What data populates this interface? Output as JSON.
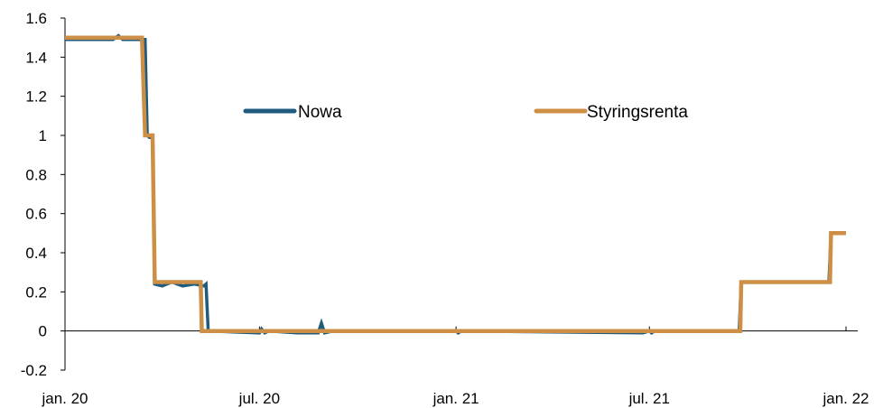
{
  "chart_data": {
    "type": "line",
    "xlabel": "",
    "ylabel": "",
    "ylim": [
      -0.2,
      1.6
    ],
    "yticks": [
      -0.2,
      0,
      0.2,
      0.4,
      0.6,
      0.8,
      1,
      1.2,
      1.4,
      1.6
    ],
    "ytick_labels": [
      "-0.2",
      "0",
      "0.2",
      "0.4",
      "0.6",
      "0.8",
      "1",
      "1.2",
      "1.4",
      "1.6"
    ],
    "xlim": [
      "2020-01-01",
      "2022-01-01"
    ],
    "xticks": [
      "2020-01-01",
      "2020-07-01",
      "2021-01-01",
      "2021-07-01",
      "2022-01-01"
    ],
    "xtick_labels": [
      "jan. 20",
      "jul. 20",
      "jan. 21",
      "jul. 21",
      "jan. 22"
    ],
    "grid": false,
    "legend_position": "upper-center",
    "series": [
      {
        "name": "Nowa",
        "color": "#1f5b7c",
        "points": [
          [
            "2020-01-01",
            1.49
          ],
          [
            "2020-02-15",
            1.49
          ],
          [
            "2020-02-20",
            1.51
          ],
          [
            "2020-02-24",
            1.49
          ],
          [
            "2020-03-16",
            1.49
          ],
          [
            "2020-03-18",
            1.0
          ],
          [
            "2020-03-20",
            0.99
          ],
          [
            "2020-03-23",
            0.99
          ],
          [
            "2020-03-25",
            0.24
          ],
          [
            "2020-04-01",
            0.23
          ],
          [
            "2020-04-10",
            0.25
          ],
          [
            "2020-04-20",
            0.23
          ],
          [
            "2020-05-01",
            0.24
          ],
          [
            "2020-05-10",
            0.23
          ],
          [
            "2020-05-12",
            0.24
          ],
          [
            "2020-05-14",
            0.0
          ],
          [
            "2020-07-01",
            -0.01
          ],
          [
            "2020-07-03",
            0.01
          ],
          [
            "2020-07-06",
            -0.01
          ],
          [
            "2020-07-10",
            0.0
          ],
          [
            "2020-08-05",
            -0.01
          ],
          [
            "2020-08-15",
            -0.01
          ],
          [
            "2020-08-25",
            -0.01
          ],
          [
            "2020-08-28",
            0.04
          ],
          [
            "2020-08-31",
            -0.01
          ],
          [
            "2020-09-08",
            0.0
          ],
          [
            "2021-01-01",
            0.0
          ],
          [
            "2021-01-03",
            -0.01
          ],
          [
            "2021-01-06",
            0.0
          ],
          [
            "2021-06-25",
            -0.01
          ],
          [
            "2021-07-01",
            0.0
          ],
          [
            "2021-07-03",
            -0.01
          ],
          [
            "2021-07-06",
            0.0
          ],
          [
            "2021-09-23",
            0.0
          ],
          [
            "2021-09-25",
            0.25
          ],
          [
            "2021-12-16",
            0.25
          ],
          [
            "2021-12-18",
            0.5
          ],
          [
            "2022-01-01",
            0.5
          ]
        ]
      },
      {
        "name": "Styringsrenta",
        "color": "#cc8f45",
        "points": [
          [
            "2020-01-01",
            1.5
          ],
          [
            "2020-03-13",
            1.5
          ],
          [
            "2020-03-16",
            1.0
          ],
          [
            "2020-03-23",
            1.0
          ],
          [
            "2020-03-25",
            0.25
          ],
          [
            "2020-05-07",
            0.25
          ],
          [
            "2020-05-08",
            0.0
          ],
          [
            "2021-09-24",
            0.0
          ],
          [
            "2021-09-25",
            0.25
          ],
          [
            "2021-12-17",
            0.25
          ],
          [
            "2021-12-18",
            0.5
          ],
          [
            "2022-01-01",
            0.5
          ]
        ]
      }
    ]
  }
}
